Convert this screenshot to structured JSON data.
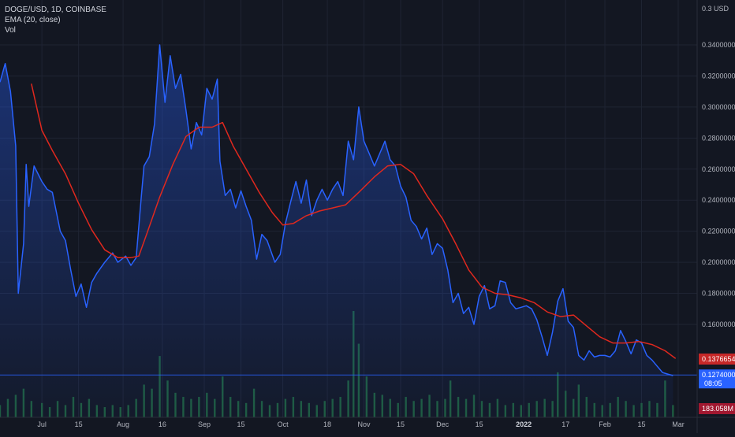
{
  "legend": {
    "symbol": "DOGE/USD, 1D, COINBASE",
    "ema": "EMA (20, close)",
    "vol": "Vol"
  },
  "axis": {
    "currency_label": "0.3 USD",
    "y_ticks": [
      "0.34000000",
      "0.32000000",
      "0.30000000",
      "0.28000000",
      "0.26000000",
      "0.24000000",
      "0.22000000",
      "0.20000000",
      "0.18000000",
      "0.16000000"
    ],
    "y_tick_values": [
      0.34,
      0.32,
      0.3,
      0.28,
      0.26,
      0.24,
      0.22,
      0.2,
      0.18,
      0.16
    ],
    "x_ticks": [
      {
        "label": "Jul",
        "date": "2021-07-01",
        "bold": false
      },
      {
        "label": "15",
        "date": "2021-07-15",
        "bold": false
      },
      {
        "label": "Aug",
        "date": "2021-08-01",
        "bold": false
      },
      {
        "label": "16",
        "date": "2021-08-16",
        "bold": false
      },
      {
        "label": "Sep",
        "date": "2021-09-01",
        "bold": false
      },
      {
        "label": "15",
        "date": "2021-09-15",
        "bold": false
      },
      {
        "label": "Oct",
        "date": "2021-10-01",
        "bold": false
      },
      {
        "label": "18",
        "date": "2021-10-18",
        "bold": false
      },
      {
        "label": "Nov",
        "date": "2021-11-01",
        "bold": false
      },
      {
        "label": "15",
        "date": "2021-11-15",
        "bold": false
      },
      {
        "label": "Dec",
        "date": "2021-12-01",
        "bold": false
      },
      {
        "label": "15",
        "date": "2021-12-15",
        "bold": false
      },
      {
        "label": "2022",
        "date": "2022-01-01",
        "bold": true
      },
      {
        "label": "17",
        "date": "2022-01-17",
        "bold": false
      },
      {
        "label": "Feb",
        "date": "2022-02-01",
        "bold": false
      },
      {
        "label": "15",
        "date": "2022-02-15",
        "bold": false
      },
      {
        "label": "Mar",
        "date": "2022-03-01",
        "bold": false
      }
    ]
  },
  "badges": {
    "ema_value": "0.13766543",
    "price_value": "0.12740000",
    "countdown": "08:05",
    "volume_value": "183.058M"
  },
  "colors": {
    "background": "#131722",
    "grid": "#1f2433",
    "price_line": "#2962ff",
    "price_fill_top": "#1e3370",
    "ema_line": "#e0281e",
    "volume_bar": "#1e5b3b",
    "ema_badge": "#c62828",
    "price_badge": "#2962ff",
    "volume_badge": "#a11830"
  },
  "chart_data": {
    "type": "line",
    "title": "DOGE/USD, 1D, COINBASE",
    "xlabel": "",
    "ylabel": "",
    "ylim": [
      0.125,
      0.352
    ],
    "grid": true,
    "legend_placement": "top-left",
    "series": [
      {
        "name": "DOGE/USD",
        "points": [
          [
            "2021-06-15",
            0.316
          ],
          [
            "2021-06-17",
            0.328
          ],
          [
            "2021-06-19",
            0.31
          ],
          [
            "2021-06-21",
            0.275
          ],
          [
            "2021-06-22",
            0.18
          ],
          [
            "2021-06-24",
            0.212
          ],
          [
            "2021-06-25",
            0.263
          ],
          [
            "2021-06-26",
            0.236
          ],
          [
            "2021-06-28",
            0.262
          ],
          [
            "2021-07-01",
            0.252
          ],
          [
            "2021-07-03",
            0.247
          ],
          [
            "2021-07-05",
            0.245
          ],
          [
            "2021-07-08",
            0.22
          ],
          [
            "2021-07-10",
            0.214
          ],
          [
            "2021-07-12",
            0.195
          ],
          [
            "2021-07-14",
            0.178
          ],
          [
            "2021-07-16",
            0.186
          ],
          [
            "2021-07-18",
            0.171
          ],
          [
            "2021-07-20",
            0.187
          ],
          [
            "2021-07-22",
            0.193
          ],
          [
            "2021-07-25",
            0.2
          ],
          [
            "2021-07-28",
            0.206
          ],
          [
            "2021-07-30",
            0.2
          ],
          [
            "2021-08-02",
            0.204
          ],
          [
            "2021-08-04",
            0.198
          ],
          [
            "2021-08-06",
            0.203
          ],
          [
            "2021-08-08",
            0.243
          ],
          [
            "2021-08-09",
            0.262
          ],
          [
            "2021-08-11",
            0.268
          ],
          [
            "2021-08-13",
            0.289
          ],
          [
            "2021-08-15",
            0.34
          ],
          [
            "2021-08-17",
            0.303
          ],
          [
            "2021-08-19",
            0.333
          ],
          [
            "2021-08-21",
            0.312
          ],
          [
            "2021-08-23",
            0.321
          ],
          [
            "2021-08-25",
            0.298
          ],
          [
            "2021-08-27",
            0.273
          ],
          [
            "2021-08-29",
            0.29
          ],
          [
            "2021-08-31",
            0.282
          ],
          [
            "2021-09-02",
            0.312
          ],
          [
            "2021-09-04",
            0.305
          ],
          [
            "2021-09-06",
            0.318
          ],
          [
            "2021-09-07",
            0.265
          ],
          [
            "2021-09-09",
            0.243
          ],
          [
            "2021-09-11",
            0.247
          ],
          [
            "2021-09-13",
            0.235
          ],
          [
            "2021-09-15",
            0.246
          ],
          [
            "2021-09-17",
            0.236
          ],
          [
            "2021-09-19",
            0.227
          ],
          [
            "2021-09-21",
            0.202
          ],
          [
            "2021-09-23",
            0.218
          ],
          [
            "2021-09-25",
            0.214
          ],
          [
            "2021-09-28",
            0.2
          ],
          [
            "2021-09-30",
            0.205
          ],
          [
            "2021-10-02",
            0.225
          ],
          [
            "2021-10-04",
            0.239
          ],
          [
            "2021-10-06",
            0.252
          ],
          [
            "2021-10-08",
            0.238
          ],
          [
            "2021-10-10",
            0.253
          ],
          [
            "2021-10-12",
            0.23
          ],
          [
            "2021-10-14",
            0.24
          ],
          [
            "2021-10-16",
            0.247
          ],
          [
            "2021-10-18",
            0.24
          ],
          [
            "2021-10-20",
            0.247
          ],
          [
            "2021-10-22",
            0.252
          ],
          [
            "2021-10-24",
            0.243
          ],
          [
            "2021-10-26",
            0.278
          ],
          [
            "2021-10-28",
            0.266
          ],
          [
            "2021-10-30",
            0.3
          ],
          [
            "2021-11-01",
            0.278
          ],
          [
            "2021-11-03",
            0.27
          ],
          [
            "2021-11-05",
            0.262
          ],
          [
            "2021-11-07",
            0.27
          ],
          [
            "2021-11-09",
            0.278
          ],
          [
            "2021-11-11",
            0.266
          ],
          [
            "2021-11-13",
            0.262
          ],
          [
            "2021-11-15",
            0.249
          ],
          [
            "2021-11-17",
            0.242
          ],
          [
            "2021-11-19",
            0.227
          ],
          [
            "2021-11-21",
            0.223
          ],
          [
            "2021-11-23",
            0.215
          ],
          [
            "2021-11-25",
            0.222
          ],
          [
            "2021-11-27",
            0.205
          ],
          [
            "2021-11-29",
            0.212
          ],
          [
            "2021-12-01",
            0.209
          ],
          [
            "2021-12-03",
            0.195
          ],
          [
            "2021-12-05",
            0.174
          ],
          [
            "2021-12-07",
            0.18
          ],
          [
            "2021-12-09",
            0.167
          ],
          [
            "2021-12-11",
            0.171
          ],
          [
            "2021-12-13",
            0.16
          ],
          [
            "2021-12-15",
            0.178
          ],
          [
            "2021-12-17",
            0.185
          ],
          [
            "2021-12-19",
            0.17
          ],
          [
            "2021-12-21",
            0.172
          ],
          [
            "2021-12-23",
            0.188
          ],
          [
            "2021-12-25",
            0.187
          ],
          [
            "2021-12-27",
            0.174
          ],
          [
            "2021-12-29",
            0.17
          ],
          [
            "2021-12-31",
            0.171
          ],
          [
            "2022-01-02",
            0.172
          ],
          [
            "2022-01-04",
            0.17
          ],
          [
            "2022-01-06",
            0.163
          ],
          [
            "2022-01-08",
            0.152
          ],
          [
            "2022-01-10",
            0.14
          ],
          [
            "2022-01-12",
            0.155
          ],
          [
            "2022-01-14",
            0.175
          ],
          [
            "2022-01-16",
            0.183
          ],
          [
            "2022-01-18",
            0.162
          ],
          [
            "2022-01-20",
            0.158
          ],
          [
            "2022-01-22",
            0.14
          ],
          [
            "2022-01-24",
            0.137
          ],
          [
            "2022-01-26",
            0.143
          ],
          [
            "2022-01-28",
            0.139
          ],
          [
            "2022-01-30",
            0.14
          ],
          [
            "2022-02-01",
            0.14
          ],
          [
            "2022-02-03",
            0.139
          ],
          [
            "2022-02-05",
            0.143
          ],
          [
            "2022-02-07",
            0.156
          ],
          [
            "2022-02-09",
            0.149
          ],
          [
            "2022-02-11",
            0.141
          ],
          [
            "2022-02-13",
            0.15
          ],
          [
            "2022-02-15",
            0.148
          ],
          [
            "2022-02-17",
            0.14
          ],
          [
            "2022-02-19",
            0.137
          ],
          [
            "2022-02-21",
            0.133
          ],
          [
            "2022-02-23",
            0.129
          ],
          [
            "2022-02-25",
            0.128
          ],
          [
            "2022-02-27",
            0.127
          ]
        ]
      },
      {
        "name": "EMA (20, close)",
        "points": [
          [
            "2021-06-27",
            0.315
          ],
          [
            "2021-07-01",
            0.285
          ],
          [
            "2021-07-05",
            0.272
          ],
          [
            "2021-07-10",
            0.257
          ],
          [
            "2021-07-15",
            0.238
          ],
          [
            "2021-07-20",
            0.221
          ],
          [
            "2021-07-25",
            0.208
          ],
          [
            "2021-07-30",
            0.203
          ],
          [
            "2021-08-04",
            0.203
          ],
          [
            "2021-08-07",
            0.204
          ],
          [
            "2021-08-10",
            0.218
          ],
          [
            "2021-08-15",
            0.242
          ],
          [
            "2021-08-20",
            0.263
          ],
          [
            "2021-08-25",
            0.281
          ],
          [
            "2021-08-30",
            0.287
          ],
          [
            "2021-09-04",
            0.287
          ],
          [
            "2021-09-08",
            0.29
          ],
          [
            "2021-09-12",
            0.275
          ],
          [
            "2021-09-17",
            0.26
          ],
          [
            "2021-09-22",
            0.245
          ],
          [
            "2021-09-27",
            0.232
          ],
          [
            "2021-10-01",
            0.224
          ],
          [
            "2021-10-05",
            0.225
          ],
          [
            "2021-10-10",
            0.23
          ],
          [
            "2021-10-15",
            0.233
          ],
          [
            "2021-10-20",
            0.235
          ],
          [
            "2021-10-25",
            0.237
          ],
          [
            "2021-10-30",
            0.245
          ],
          [
            "2021-11-05",
            0.255
          ],
          [
            "2021-11-10",
            0.262
          ],
          [
            "2021-11-15",
            0.263
          ],
          [
            "2021-11-20",
            0.257
          ],
          [
            "2021-11-25",
            0.243
          ],
          [
            "2021-12-01",
            0.228
          ],
          [
            "2021-12-06",
            0.212
          ],
          [
            "2021-12-11",
            0.195
          ],
          [
            "2021-12-16",
            0.184
          ],
          [
            "2021-12-21",
            0.18
          ],
          [
            "2021-12-26",
            0.179
          ],
          [
            "2021-12-31",
            0.177
          ],
          [
            "2022-01-05",
            0.174
          ],
          [
            "2022-01-10",
            0.168
          ],
          [
            "2022-01-15",
            0.165
          ],
          [
            "2022-01-20",
            0.166
          ],
          [
            "2022-01-25",
            0.159
          ],
          [
            "2022-01-30",
            0.152
          ],
          [
            "2022-02-04",
            0.148
          ],
          [
            "2022-02-09",
            0.148
          ],
          [
            "2022-02-14",
            0.149
          ],
          [
            "2022-02-19",
            0.147
          ],
          [
            "2022-02-24",
            0.143
          ],
          [
            "2022-02-28",
            0.138
          ]
        ]
      }
    ],
    "volume": [
      [
        "2021-06-15",
        6
      ],
      [
        "2021-06-18",
        9
      ],
      [
        "2021-06-21",
        11
      ],
      [
        "2021-06-24",
        14
      ],
      [
        "2021-06-27",
        8
      ],
      [
        "2021-07-01",
        7
      ],
      [
        "2021-07-04",
        5
      ],
      [
        "2021-07-07",
        8
      ],
      [
        "2021-07-10",
        6
      ],
      [
        "2021-07-13",
        10
      ],
      [
        "2021-07-16",
        7
      ],
      [
        "2021-07-19",
        9
      ],
      [
        "2021-07-22",
        6
      ],
      [
        "2021-07-25",
        5
      ],
      [
        "2021-07-28",
        6
      ],
      [
        "2021-07-31",
        5
      ],
      [
        "2021-08-03",
        6
      ],
      [
        "2021-08-06",
        9
      ],
      [
        "2021-08-09",
        16
      ],
      [
        "2021-08-12",
        14
      ],
      [
        "2021-08-15",
        30
      ],
      [
        "2021-08-18",
        18
      ],
      [
        "2021-08-21",
        12
      ],
      [
        "2021-08-24",
        10
      ],
      [
        "2021-08-27",
        9
      ],
      [
        "2021-08-30",
        10
      ],
      [
        "2021-09-02",
        12
      ],
      [
        "2021-09-05",
        9
      ],
      [
        "2021-09-08",
        20
      ],
      [
        "2021-09-11",
        10
      ],
      [
        "2021-09-14",
        8
      ],
      [
        "2021-09-17",
        7
      ],
      [
        "2021-09-20",
        14
      ],
      [
        "2021-09-23",
        8
      ],
      [
        "2021-09-26",
        6
      ],
      [
        "2021-09-29",
        7
      ],
      [
        "2021-10-02",
        9
      ],
      [
        "2021-10-05",
        10
      ],
      [
        "2021-10-08",
        8
      ],
      [
        "2021-10-11",
        7
      ],
      [
        "2021-10-14",
        6
      ],
      [
        "2021-10-17",
        8
      ],
      [
        "2021-10-20",
        9
      ],
      [
        "2021-10-23",
        10
      ],
      [
        "2021-10-26",
        18
      ],
      [
        "2021-10-28",
        52
      ],
      [
        "2021-10-30",
        36
      ],
      [
        "2021-11-02",
        20
      ],
      [
        "2021-11-05",
        12
      ],
      [
        "2021-11-08",
        11
      ],
      [
        "2021-11-11",
        9
      ],
      [
        "2021-11-14",
        7
      ],
      [
        "2021-11-17",
        10
      ],
      [
        "2021-11-20",
        8
      ],
      [
        "2021-11-23",
        9
      ],
      [
        "2021-11-26",
        11
      ],
      [
        "2021-11-29",
        8
      ],
      [
        "2021-12-02",
        9
      ],
      [
        "2021-12-04",
        18
      ],
      [
        "2021-12-07",
        10
      ],
      [
        "2021-12-10",
        9
      ],
      [
        "2021-12-13",
        11
      ],
      [
        "2021-12-16",
        8
      ],
      [
        "2021-12-19",
        7
      ],
      [
        "2021-12-22",
        9
      ],
      [
        "2021-12-25",
        6
      ],
      [
        "2021-12-28",
        7
      ],
      [
        "2021-12-31",
        6
      ],
      [
        "2022-01-03",
        7
      ],
      [
        "2022-01-06",
        8
      ],
      [
        "2022-01-09",
        9
      ],
      [
        "2022-01-12",
        8
      ],
      [
        "2022-01-14",
        22
      ],
      [
        "2022-01-17",
        13
      ],
      [
        "2022-01-20",
        9
      ],
      [
        "2022-01-22",
        16
      ],
      [
        "2022-01-25",
        10
      ],
      [
        "2022-01-28",
        7
      ],
      [
        "2022-01-31",
        6
      ],
      [
        "2022-02-03",
        7
      ],
      [
        "2022-02-06",
        10
      ],
      [
        "2022-02-09",
        8
      ],
      [
        "2022-02-12",
        6
      ],
      [
        "2022-02-15",
        7
      ],
      [
        "2022-02-18",
        8
      ],
      [
        "2022-02-21",
        7
      ],
      [
        "2022-02-24",
        18
      ],
      [
        "2022-02-27",
        6
      ]
    ]
  }
}
